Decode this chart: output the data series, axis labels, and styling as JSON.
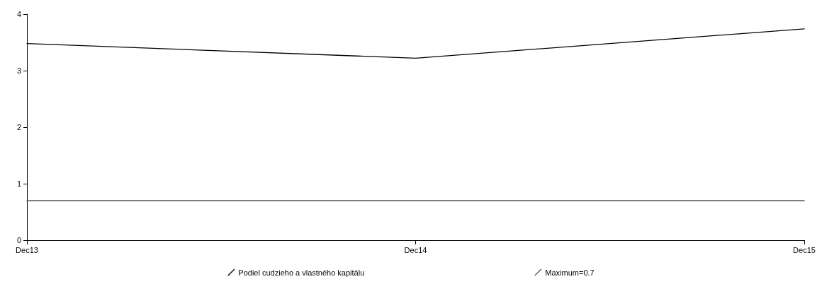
{
  "chart_data": {
    "type": "line",
    "categories": [
      "Dec13",
      "Dec14",
      "Dec15"
    ],
    "series": [
      {
        "name": "Podiel cudzieho a vlastného kapitálu",
        "color": "#000000",
        "values": [
          3.48,
          3.22,
          3.74
        ]
      },
      {
        "name": "Maximum=0.7",
        "color": "#555555",
        "values": [
          0.7,
          0.7,
          0.7
        ]
      }
    ],
    "ylim": [
      0,
      4
    ],
    "yticks": [
      0,
      1,
      2,
      3,
      4
    ],
    "grid": false,
    "legend": "bottom",
    "marker": "none",
    "line_style": "solid"
  }
}
